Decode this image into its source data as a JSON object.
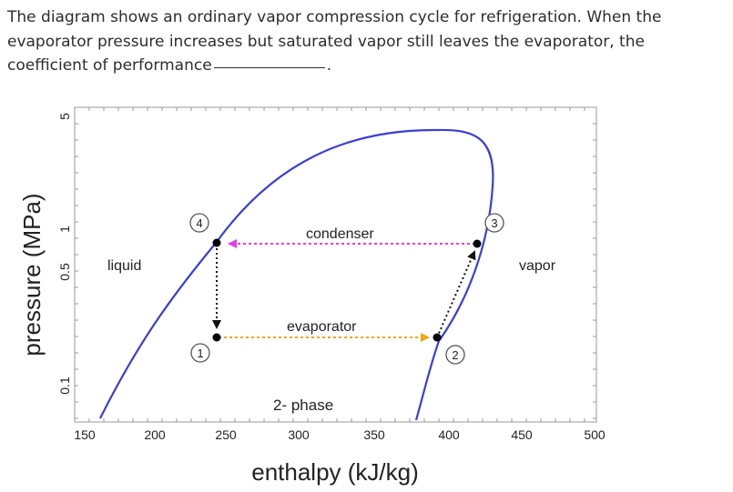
{
  "question": {
    "text_before_blank": "The diagram shows an ordinary vapor compression cycle for refrigeration. When the evaporator pressure increases but saturated vapor still leaves the evaporator, the coefficient of performance",
    "text_after_blank": "."
  },
  "chart_data": {
    "type": "diagram",
    "xlabel": "enthalpy (kJ/kg)",
    "ylabel": "pressure (MPa)",
    "x_ticks": [
      "150",
      "200",
      "250",
      "300",
      "350",
      "400",
      "450",
      "500"
    ],
    "y_ticks": [
      "5",
      "1",
      "0.5",
      "0.1"
    ],
    "region_labels": {
      "liquid": "liquid",
      "vapor": "vapor",
      "two_phase": "2- phase"
    },
    "process_labels": {
      "condenser": "condenser",
      "evaporator": "evaporator"
    },
    "states": [
      {
        "label": "1",
        "h": 245,
        "p": 0.2
      },
      {
        "label": "2",
        "h": 398,
        "p": 0.2
      },
      {
        "label": "3",
        "h": 427,
        "p": 0.78
      },
      {
        "label": "4",
        "h": 245,
        "p": 0.78
      }
    ],
    "colors": {
      "saturation_dome": "#3b3fd6",
      "condenser_arrow": "#e23de8",
      "evaporator_arrow": "#f2a516",
      "compressor_arrow": "#111111",
      "expansion_arrow": "#111111"
    }
  }
}
